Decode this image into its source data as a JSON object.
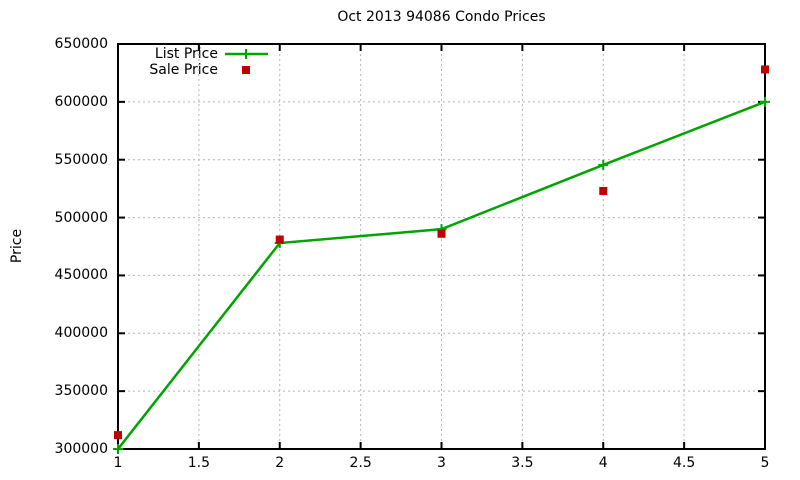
{
  "chart_data": {
    "type": "line",
    "title": "Oct 2013 94086 Condo Prices",
    "xlabel": "",
    "ylabel": "Price",
    "xlim": [
      1,
      5
    ],
    "ylim": [
      300000,
      650000
    ],
    "xticks": [
      "1",
      "1.5",
      "2",
      "2.5",
      "3",
      "3.5",
      "4",
      "4.5",
      "5"
    ],
    "yticks": [
      "300000",
      "350000",
      "400000",
      "450000",
      "500000",
      "550000",
      "600000",
      "650000"
    ],
    "grid": true,
    "legend_position": "top-left-inside",
    "x": [
      1,
      2,
      3,
      4,
      5
    ],
    "series": [
      {
        "name": "List Price",
        "marker": "plus",
        "draw": "line+marker",
        "color": "#00a400",
        "values": [
          300000,
          478000,
          490000,
          545500,
          600000
        ]
      },
      {
        "name": "Sale Price",
        "marker": "square",
        "draw": "marker",
        "color": "#c00000",
        "values": [
          312000,
          481000,
          486000,
          523000,
          628000
        ]
      }
    ],
    "colors": {
      "background": "#ffffff",
      "border": "#000000",
      "grid": "#b4b4b4",
      "text": "#000000"
    }
  }
}
